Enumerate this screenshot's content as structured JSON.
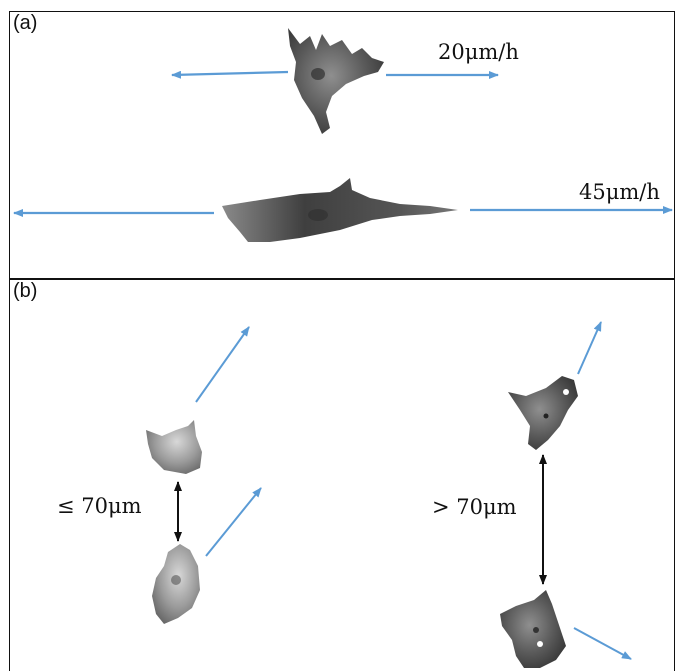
{
  "panels": [
    {
      "label": "(a)"
    },
    {
      "label": "(b)"
    }
  ],
  "speeds": {
    "slow": "20μm/h",
    "fast": "45μm/h"
  },
  "distances": {
    "near": "≤ 70μm",
    "far": "> 70μm"
  },
  "colors": {
    "motion_arrow": "#5b9bd5",
    "distance_arrow": "#111111",
    "cell_dark": "#4a4a4a",
    "cell_light": "#9a9a9a"
  }
}
